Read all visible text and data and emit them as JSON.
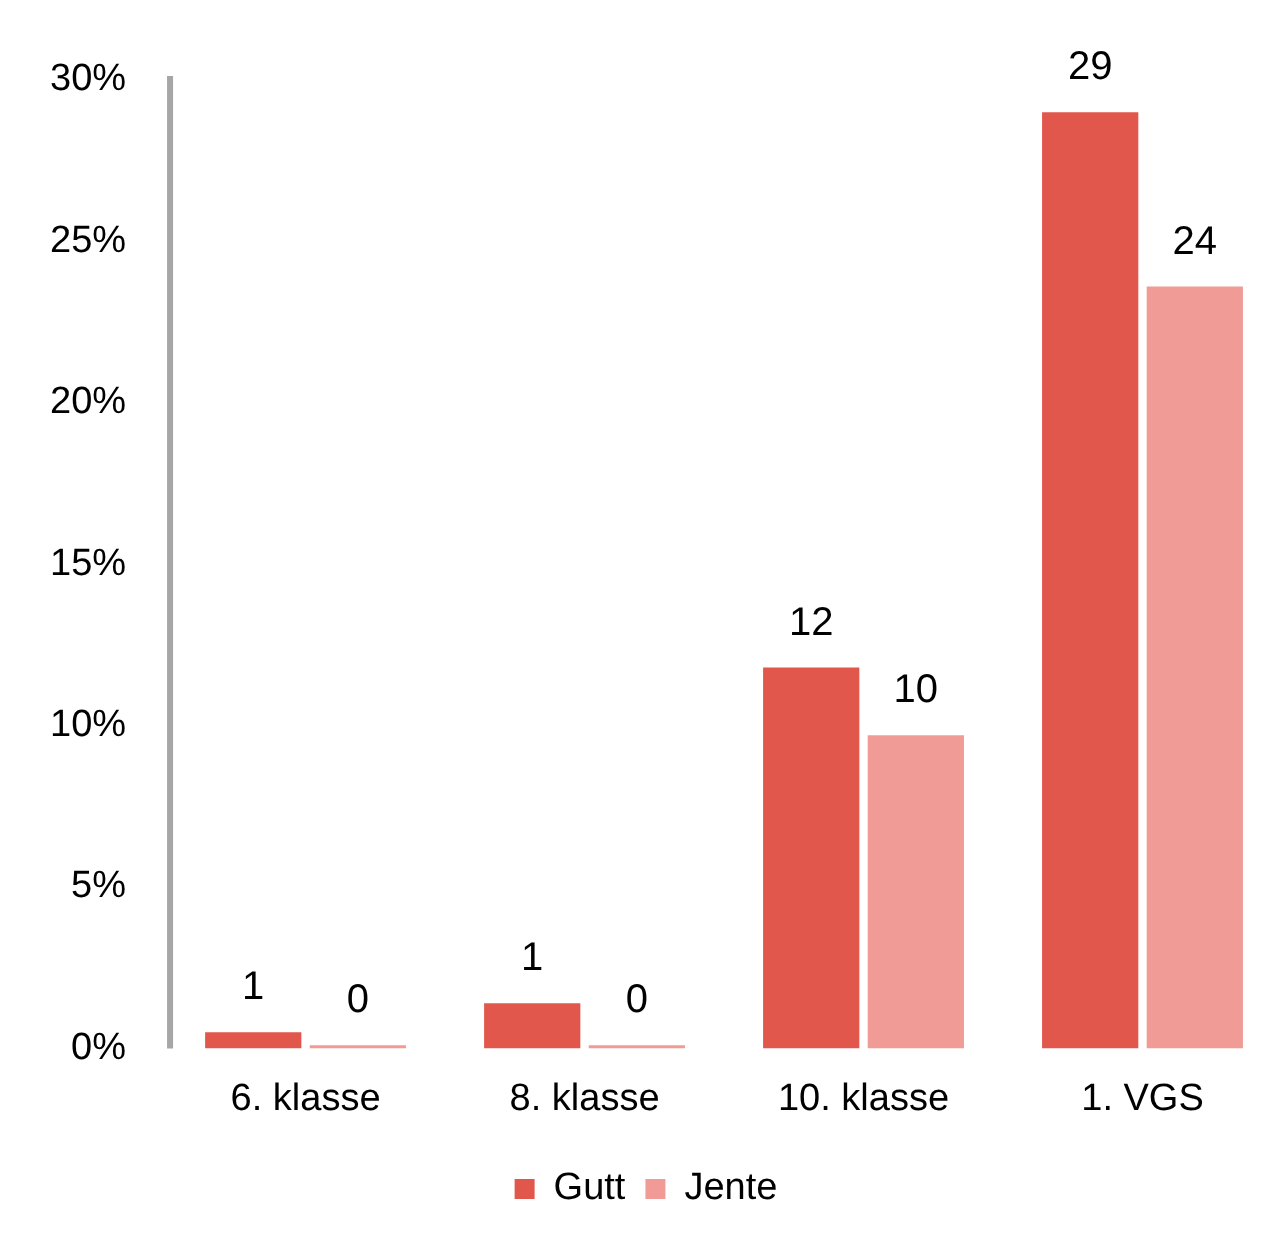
{
  "chart_data": {
    "type": "bar",
    "categories": [
      "6. klasse",
      "8. klasse",
      "10. klasse",
      "1. VGS"
    ],
    "series": [
      {
        "name": "Gutt",
        "color": "#e2574c",
        "values": [
          0.5,
          1.4,
          11.8,
          29.0
        ],
        "value_labels": [
          "1",
          "1",
          "12",
          "29"
        ]
      },
      {
        "name": "Jente",
        "color": "#f09b95",
        "values": [
          0.1,
          0.1,
          9.7,
          23.6
        ],
        "value_labels": [
          "0",
          "0",
          "10",
          "24"
        ]
      }
    ],
    "ylim": [
      0,
      30
    ],
    "yticks": [
      {
        "value": 0,
        "label": "0%"
      },
      {
        "value": 5,
        "label": "5%"
      },
      {
        "value": 10,
        "label": "10%"
      },
      {
        "value": 15,
        "label": "15%"
      },
      {
        "value": 20,
        "label": "20%"
      },
      {
        "value": 25,
        "label": "25%"
      },
      {
        "value": 30,
        "label": "30%"
      }
    ],
    "grid": false,
    "legend": "bottom"
  }
}
